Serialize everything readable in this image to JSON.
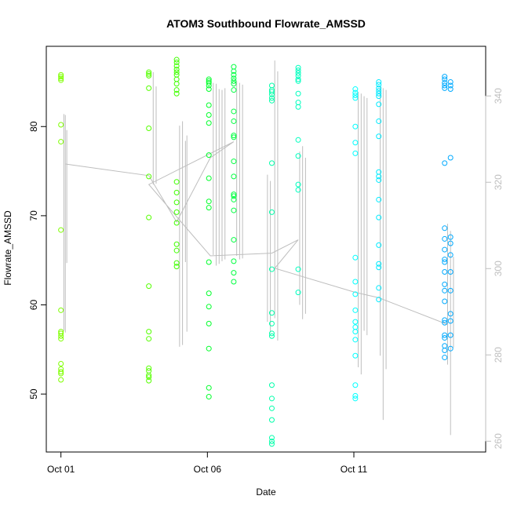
{
  "chart_data": {
    "type": "scatter",
    "title": "ATOM3 Southbound Flowrate_AMSSD",
    "xlabel": "Date",
    "ylabel": "Flowrate_AMSSD",
    "x_ticks": [
      "Oct 01",
      "Oct 06",
      "Oct 11"
    ],
    "y_ticks": [
      50,
      60,
      70,
      80
    ],
    "y2_ticks": [
      260,
      280,
      300,
      320,
      340
    ],
    "ylim": [
      43.5,
      89.0
    ],
    "y2lim": [
      257.5,
      351.5
    ],
    "xlim": [
      "Sep 30 12:00",
      "Oct 15 12:00"
    ],
    "grid": false,
    "colors": {
      "axis": "#000000",
      "secondary_axis": "#bebebe",
      "trend_line": "#bebebe"
    },
    "groups": [
      {
        "x": 1.0,
        "color": "#7fff00",
        "y": [
          85.8,
          85.6,
          85.4,
          85.2,
          80.2,
          78.3,
          68.4,
          59.4,
          57.0,
          56.8,
          56.5,
          56.2,
          53.4,
          52.8,
          52.5,
          52.3,
          51.6
        ]
      },
      {
        "x": 4.0,
        "color": "#55ff00",
        "y": [
          86.1,
          85.9,
          85.7,
          84.3,
          79.8,
          74.4,
          69.8,
          62.1,
          57.0,
          56.2,
          52.9,
          52.6,
          52.1,
          51.9,
          51.5
        ]
      },
      {
        "x": 4.95,
        "color": "#40ff00",
        "y": [
          87.5,
          87.2,
          86.8,
          86.4,
          86.1,
          85.8,
          85.3,
          84.8,
          84.1,
          83.7,
          73.8,
          72.6,
          71.5,
          70.4,
          69.2,
          66.8,
          66.1,
          64.7,
          64.3
        ]
      },
      {
        "x": 6.05,
        "color": "#00ff2a",
        "y": [
          85.3,
          85.1,
          84.9,
          84.6,
          84.2,
          82.4,
          81.3,
          80.4,
          76.8,
          74.2,
          71.6,
          70.9,
          64.8,
          61.3,
          59.8,
          57.9,
          55.1,
          50.7,
          49.7
        ]
      },
      {
        "x": 6.9,
        "color": "#00ff40",
        "y": [
          86.7,
          86.2,
          85.8,
          85.4,
          85.1,
          84.8,
          84.1,
          81.7,
          80.6,
          79.0,
          78.8,
          76.1,
          74.4,
          72.4,
          72.2,
          71.8,
          70.6,
          67.3,
          64.9,
          63.6,
          62.6
        ]
      },
      {
        "x": 8.2,
        "color": "#00ffaa",
        "y": [
          84.6,
          84.1,
          83.9,
          83.6,
          83.2,
          82.9,
          75.9,
          70.4,
          64.0,
          59.1,
          57.9,
          56.8,
          56.5,
          51.0,
          49.5,
          48.4,
          47.1,
          45.1,
          44.7,
          44.4
        ]
      },
      {
        "x": 9.1,
        "color": "#00ffbf",
        "y": [
          86.6,
          86.3,
          86.0,
          85.7,
          85.3,
          85.1,
          83.7,
          82.7,
          82.2,
          78.5,
          76.7,
          73.5,
          72.9,
          64.0,
          61.4
        ]
      },
      {
        "x": 11.05,
        "color": "#00ffff",
        "y": [
          84.2,
          83.8,
          83.5,
          83.2,
          80.0,
          78.2,
          77.0,
          65.3,
          62.6,
          61.2,
          59.4,
          58.1,
          57.5,
          57.0,
          56.1,
          54.3,
          51.0,
          49.8,
          49.5
        ]
      },
      {
        "x": 11.85,
        "color": "#00eaff",
        "y": [
          85.0,
          84.7,
          84.3,
          84.0,
          83.7,
          83.4,
          82.5,
          80.6,
          78.9,
          74.9,
          74.4,
          74.0,
          71.8,
          69.8,
          66.7,
          64.6,
          64.2,
          61.9,
          60.6
        ]
      },
      {
        "x": 14.1,
        "color": "#00aaff",
        "y": [
          85.6,
          85.3,
          84.9,
          84.6,
          84.3,
          75.9,
          68.6,
          67.4,
          66.2,
          65.1,
          64.8,
          63.7,
          62.3,
          61.6,
          60.4,
          58.3,
          58.0,
          56.6,
          56.3,
          55.4,
          54.9,
          54.1
        ]
      },
      {
        "x": 14.3,
        "color": "#00aaff",
        "y": [
          85.0,
          84.6,
          84.2,
          76.5,
          67.6,
          66.9,
          65.6,
          63.7,
          61.6,
          59.0,
          58.2,
          56.6,
          55.1
        ]
      }
    ],
    "trend_line": {
      "x": [
        1.15,
        4.0,
        4.95,
        6.1,
        6.9,
        4.0,
        6.1,
        8.2,
        9.1,
        8.3,
        11.05,
        11.85,
        14.2
      ],
      "y": [
        75.8,
        74.5,
        69.3,
        76.5,
        78.3,
        73.5,
        65.5,
        65.8,
        67.3,
        64.1,
        61.4,
        60.8,
        57.8
      ]
    },
    "vertical_ranges": [
      {
        "x": 1.1,
        "y": [
          57.1,
          81.4
        ]
      },
      {
        "x": 1.15,
        "y": [
          56.9,
          81.3
        ]
      },
      {
        "x": 1.2,
        "y": [
          64.7,
          79.6
        ]
      },
      {
        "x": 4.15,
        "y": [
          73.5,
          86.1
        ]
      },
      {
        "x": 4.25,
        "y": [
          73.6,
          84.5
        ]
      },
      {
        "x": 5.05,
        "y": [
          55.3,
          80.1
        ]
      },
      {
        "x": 5.15,
        "y": [
          55.5,
          80.6
        ]
      },
      {
        "x": 5.25,
        "y": [
          64.8,
          78.4
        ]
      },
      {
        "x": 5.3,
        "y": [
          57.0,
          79.0
        ]
      },
      {
        "x": 6.2,
        "y": [
          65.6,
          84.9
        ]
      },
      {
        "x": 6.3,
        "y": [
          64.4,
          84.8
        ]
      },
      {
        "x": 6.4,
        "y": [
          64.6,
          84.2
        ]
      },
      {
        "x": 6.5,
        "y": [
          64.9,
          84.1
        ]
      },
      {
        "x": 6.6,
        "y": [
          65.1,
          84.3
        ]
      },
      {
        "x": 7.0,
        "y": [
          65.5,
          85.1
        ]
      },
      {
        "x": 7.1,
        "y": [
          65.1,
          84.9
        ]
      },
      {
        "x": 7.2,
        "y": [
          65.2,
          84.7
        ]
      },
      {
        "x": 8.05,
        "y": [
          58.1,
          74.6
        ]
      },
      {
        "x": 8.15,
        "y": [
          56.9,
          73.9
        ]
      },
      {
        "x": 8.3,
        "y": [
          58.5,
          87.4
        ]
      },
      {
        "x": 8.4,
        "y": [
          56.0,
          86.2
        ]
      },
      {
        "x": 9.15,
        "y": [
          60.0,
          77.2
        ]
      },
      {
        "x": 9.25,
        "y": [
          58.4,
          77.8
        ]
      },
      {
        "x": 9.35,
        "y": [
          59.0,
          76.5
        ]
      },
      {
        "x": 11.15,
        "y": [
          53.0,
          83.9
        ]
      },
      {
        "x": 11.25,
        "y": [
          52.2,
          83.7
        ]
      },
      {
        "x": 11.35,
        "y": [
          57.1,
          83.4
        ]
      },
      {
        "x": 11.45,
        "y": [
          56.6,
          83.2
        ]
      },
      {
        "x": 11.9,
        "y": [
          54.3,
          84.5
        ]
      },
      {
        "x": 12.0,
        "y": [
          47.1,
          84.3
        ]
      },
      {
        "x": 12.1,
        "y": [
          52.8,
          84.1
        ]
      },
      {
        "x": 14.2,
        "y": [
          53.3,
          69.1
        ]
      },
      {
        "x": 14.3,
        "y": [
          45.4,
          68.3
        ]
      },
      {
        "x": 14.4,
        "y": [
          55.2,
          65.4
        ]
      }
    ]
  }
}
